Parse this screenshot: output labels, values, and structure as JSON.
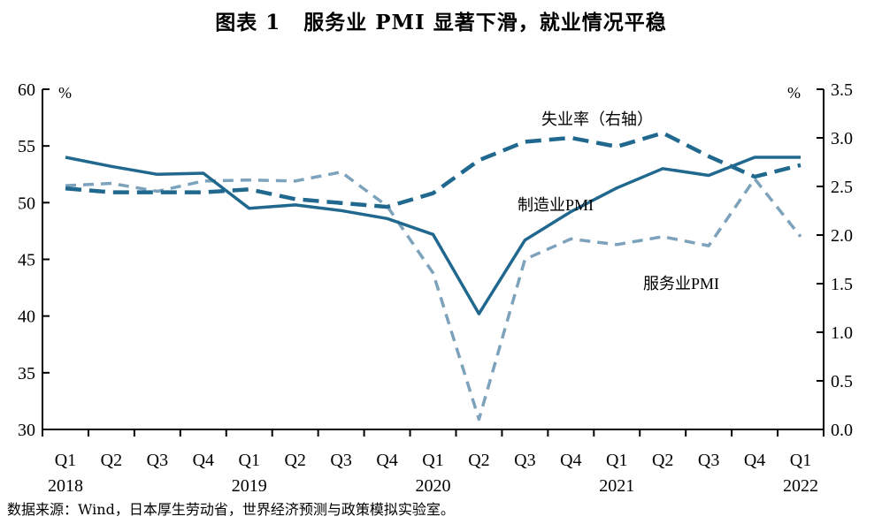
{
  "title": {
    "figure_no": "图表 1",
    "text": "服务业 PMI 显著下滑，就业情况平稳"
  },
  "source": "数据来源：Wind，日本厚生劳动省，世界经济预测与政策模拟实验室。",
  "chart_data": {
    "type": "line",
    "quarters": [
      "Q1",
      "Q2",
      "Q3",
      "Q4",
      "Q1",
      "Q2",
      "Q3",
      "Q4",
      "Q1",
      "Q2",
      "Q3",
      "Q4",
      "Q1",
      "Q2",
      "Q3",
      "Q4",
      "Q1"
    ],
    "years": [
      {
        "label": "2018",
        "index": 0
      },
      {
        "label": "2019",
        "index": 4
      },
      {
        "label": "2020",
        "index": 8
      },
      {
        "label": "2021",
        "index": 12
      },
      {
        "label": "2022",
        "index": 16
      }
    ],
    "left_axis": {
      "unit": "%",
      "min": 30,
      "max": 60,
      "ticks": [
        30,
        35,
        40,
        45,
        50,
        55,
        60
      ]
    },
    "right_axis": {
      "unit": "%",
      "min": 0.0,
      "max": 3.5,
      "ticks": [
        "0.0",
        "0.5",
        "1.0",
        "1.5",
        "2.0",
        "2.5",
        "3.0",
        "3.5"
      ]
    },
    "series": [
      {
        "name": "制造业PMI",
        "axis": "left",
        "style": "solid",
        "color": "#21688f",
        "values": [
          54.0,
          53.2,
          52.5,
          52.6,
          49.5,
          49.8,
          49.3,
          48.6,
          47.2,
          40.2,
          46.7,
          49.2,
          51.3,
          53.0,
          52.4,
          54.0,
          54.0
        ]
      },
      {
        "name": "服务业PMI",
        "axis": "left",
        "style": "dashed-light",
        "color": "#7da2bb",
        "values": [
          51.5,
          51.7,
          51.0,
          51.9,
          52.0,
          51.9,
          52.7,
          49.7,
          43.8,
          30.9,
          45.0,
          46.8,
          46.3,
          47.0,
          46.2,
          52.1,
          47.0
        ]
      },
      {
        "name": "失业率（右轴）",
        "axis": "right",
        "style": "dashed-bold",
        "color": "#21688f",
        "values": [
          2.48,
          2.44,
          2.44,
          2.44,
          2.47,
          2.37,
          2.33,
          2.29,
          2.43,
          2.77,
          2.96,
          3.0,
          2.91,
          3.05,
          2.81,
          2.6,
          2.72
        ]
      }
    ],
    "annotations": [
      "失业率（右轴）",
      "制造业PMI",
      "服务业PMI"
    ]
  }
}
